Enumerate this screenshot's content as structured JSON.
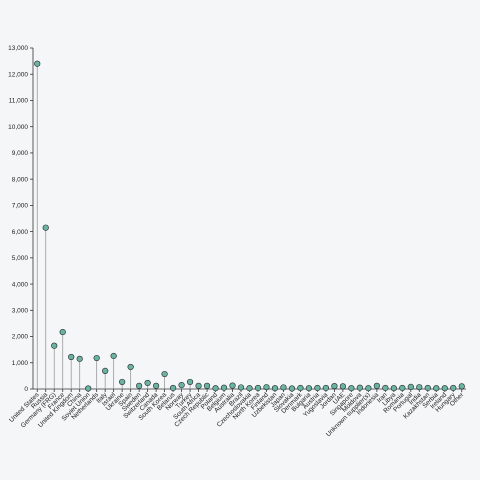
{
  "chart_data": {
    "type": "lollipop",
    "categories": [
      "United States",
      "Russia",
      "Germany (FRG)",
      "France",
      "United Kingdom",
      "China",
      "Soviet Union",
      "Netherlands",
      "Italy",
      "Israel",
      "Ukraine",
      "Spain",
      "Sweden",
      "Switzerland",
      "Canada",
      "South Korea",
      "Belarus",
      "Norway",
      "Turkey",
      "South Africa",
      "Czech Republic",
      "Poland",
      "Belgium",
      "Australia",
      "Brazil",
      "Czechoslovakia",
      "North Korea",
      "Finland",
      "Uzbekistan",
      "Japan",
      "Slovakia",
      "Denmark",
      "Bulgaria",
      "Austria",
      "Yugoslavia",
      "Jordan",
      "UAE",
      "Singapore",
      "Moldova",
      "Unknown supplier(s)",
      "Indonesia",
      "Iran",
      "Libya",
      "Romania",
      "Portugal",
      "India",
      "Kazakhstan",
      "Serbia",
      "Ireland",
      "Hungary",
      "Other"
    ],
    "values": [
      12400,
      6150,
      1650,
      2170,
      1220,
      1150,
      20,
      1180,
      690,
      1260,
      270,
      840,
      120,
      230,
      120,
      570,
      40,
      150,
      270,
      120,
      120,
      30,
      50,
      130,
      60,
      30,
      40,
      70,
      30,
      60,
      20,
      40,
      30,
      40,
      40,
      110,
      100,
      30,
      50,
      30,
      120,
      40,
      30,
      40,
      80,
      70,
      40,
      30,
      30,
      40,
      100
    ],
    "color": "#69b3a2",
    "ylim": [
      0,
      13000
    ],
    "yticks": [
      0,
      {
        "value": 1000,
        "label": "1,000"
      },
      {
        "value": 2000,
        "label": "2,000"
      },
      {
        "value": 3000,
        "label": "3,000"
      },
      {
        "value": 4000,
        "label": "4,000"
      },
      {
        "value": 5000,
        "label": "5,000"
      },
      {
        "value": 6000,
        "label": "6,000"
      },
      {
        "value": 7000,
        "label": "7,000"
      },
      {
        "value": 8000,
        "label": "8,000"
      },
      {
        "value": 9000,
        "label": "9,000"
      },
      {
        "value": 10000,
        "label": "10,000"
      },
      {
        "value": 11000,
        "label": "11,000"
      },
      {
        "value": 12000,
        "label": "12,000"
      },
      {
        "value": 13000,
        "label": "13,000"
      }
    ]
  }
}
